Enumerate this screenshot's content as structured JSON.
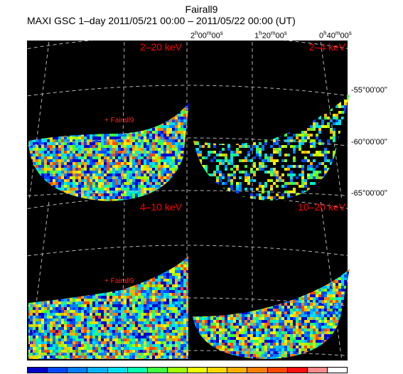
{
  "header": {
    "source_name": "Fairall9",
    "subtitle": "MAXI GSC 1–day 2011/05/21 00:00 – 2011/05/22 00:00 (UT)"
  },
  "axes": {
    "ra_ticks": [
      {
        "h": "2",
        "m": "00",
        "s": "00"
      },
      {
        "h": "1",
        "m": "20",
        "s": "00"
      },
      {
        "h": "0",
        "m": "40",
        "s": "00"
      }
    ],
    "dec_ticks": [
      "-55°00ʹ00ʺ",
      "-60°00ʹ00ʺ",
      "-65°00ʹ00ʺ"
    ]
  },
  "panels": [
    {
      "band": "2–20 keV",
      "marker": "+ Fairall9"
    },
    {
      "band": "2–4 keV"
    },
    {
      "band": "4–10 keV",
      "marker": "+ Fairall9"
    },
    {
      "band": "10–20 keV"
    }
  ],
  "colors": {
    "band_label": "#ff0000",
    "marker": "#ff2020",
    "grid": "#b4b4b4",
    "background": "#000000",
    "colorbar": [
      "#0000c8",
      "#0048ff",
      "#0080ff",
      "#00b4ff",
      "#00e0f0",
      "#00ffb0",
      "#40ff40",
      "#a0ff00",
      "#f0ff00",
      "#ffd800",
      "#ffb000",
      "#ff8000",
      "#ff4800",
      "#ff1010",
      "#ff8c8c",
      "#ffffff"
    ]
  }
}
